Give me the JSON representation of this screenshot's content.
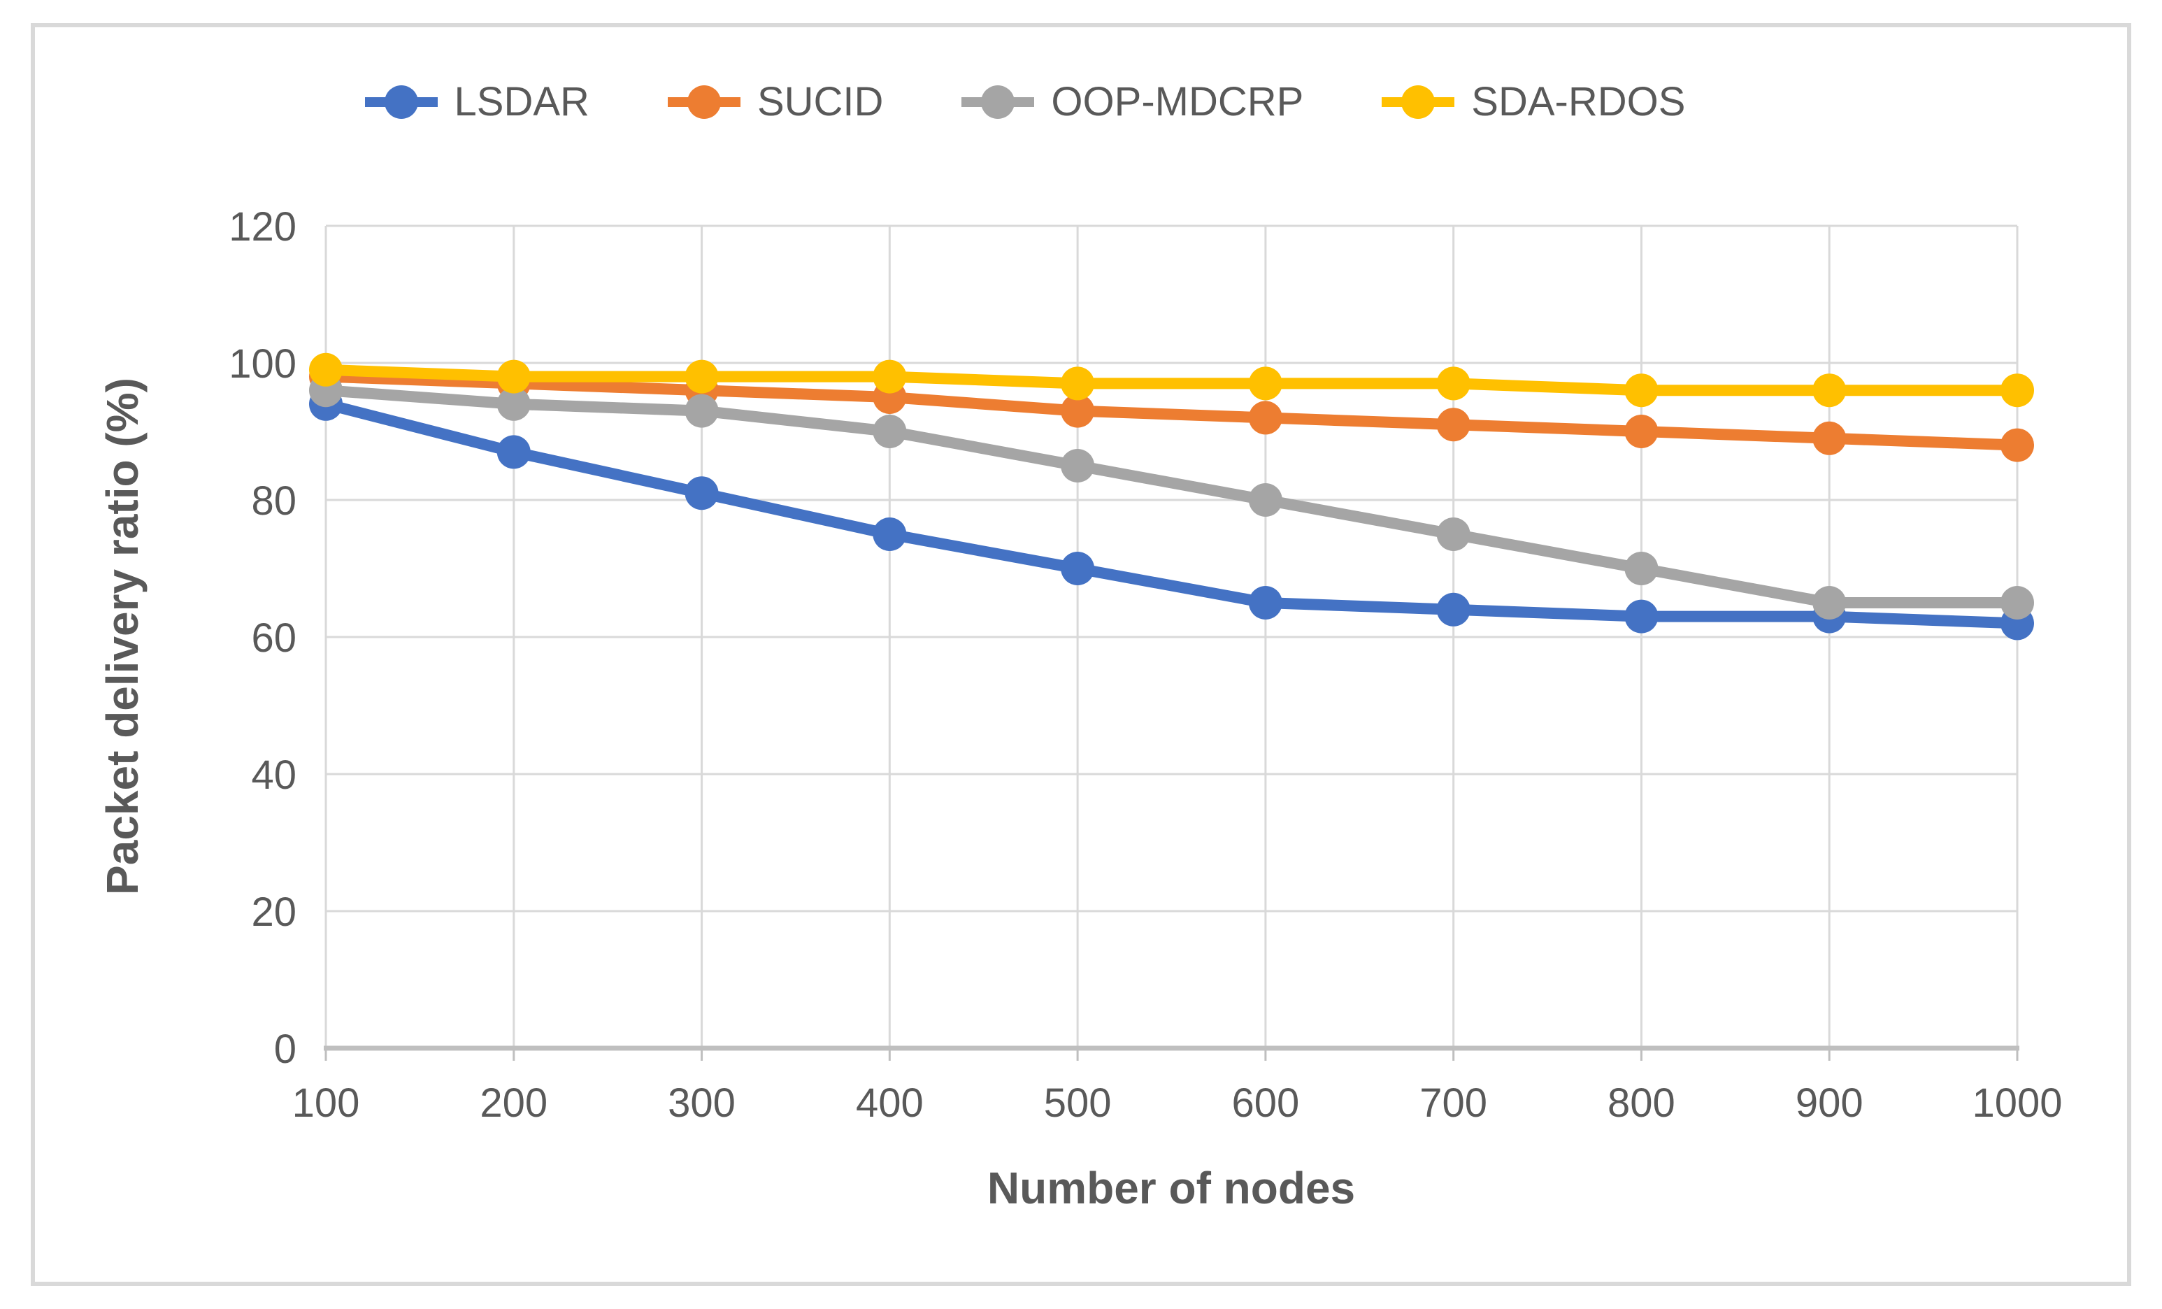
{
  "chart_data": {
    "type": "line",
    "title": "",
    "xlabel": "Number of nodes",
    "ylabel": "Packet delivery ratio (%)",
    "categories": [
      100,
      200,
      300,
      400,
      500,
      600,
      700,
      800,
      900,
      1000
    ],
    "yticks": [
      0,
      20,
      40,
      60,
      80,
      100,
      120
    ],
    "ylim": [
      0,
      120
    ],
    "grid": true,
    "legend_position": "top",
    "marker": "circle",
    "series": [
      {
        "name": "LSDAR",
        "color": "#4472C4",
        "values": [
          94,
          87,
          81,
          75,
          70,
          65,
          64,
          63,
          63,
          62
        ]
      },
      {
        "name": "SUCID",
        "color": "#ED7D31",
        "values": [
          98,
          97,
          96,
          95,
          93,
          92,
          91,
          90,
          89,
          88
        ]
      },
      {
        "name": "OOP-MDCRP",
        "color": "#A5A5A5",
        "values": [
          96,
          94,
          93,
          90,
          85,
          80,
          75,
          70,
          65,
          65
        ]
      },
      {
        "name": "SDA-RDOS",
        "color": "#FFC000",
        "values": [
          99,
          98,
          98,
          98,
          97,
          97,
          97,
          96,
          96,
          96
        ]
      }
    ],
    "colors": {
      "background": "#FFFFFF",
      "frame_border": "#D9D9D9",
      "gridline": "#D9D9D9",
      "axis_line": "#BFBFBF",
      "tick_label": "#595959",
      "axis_title": "#595959",
      "legend_label": "#595959"
    }
  }
}
